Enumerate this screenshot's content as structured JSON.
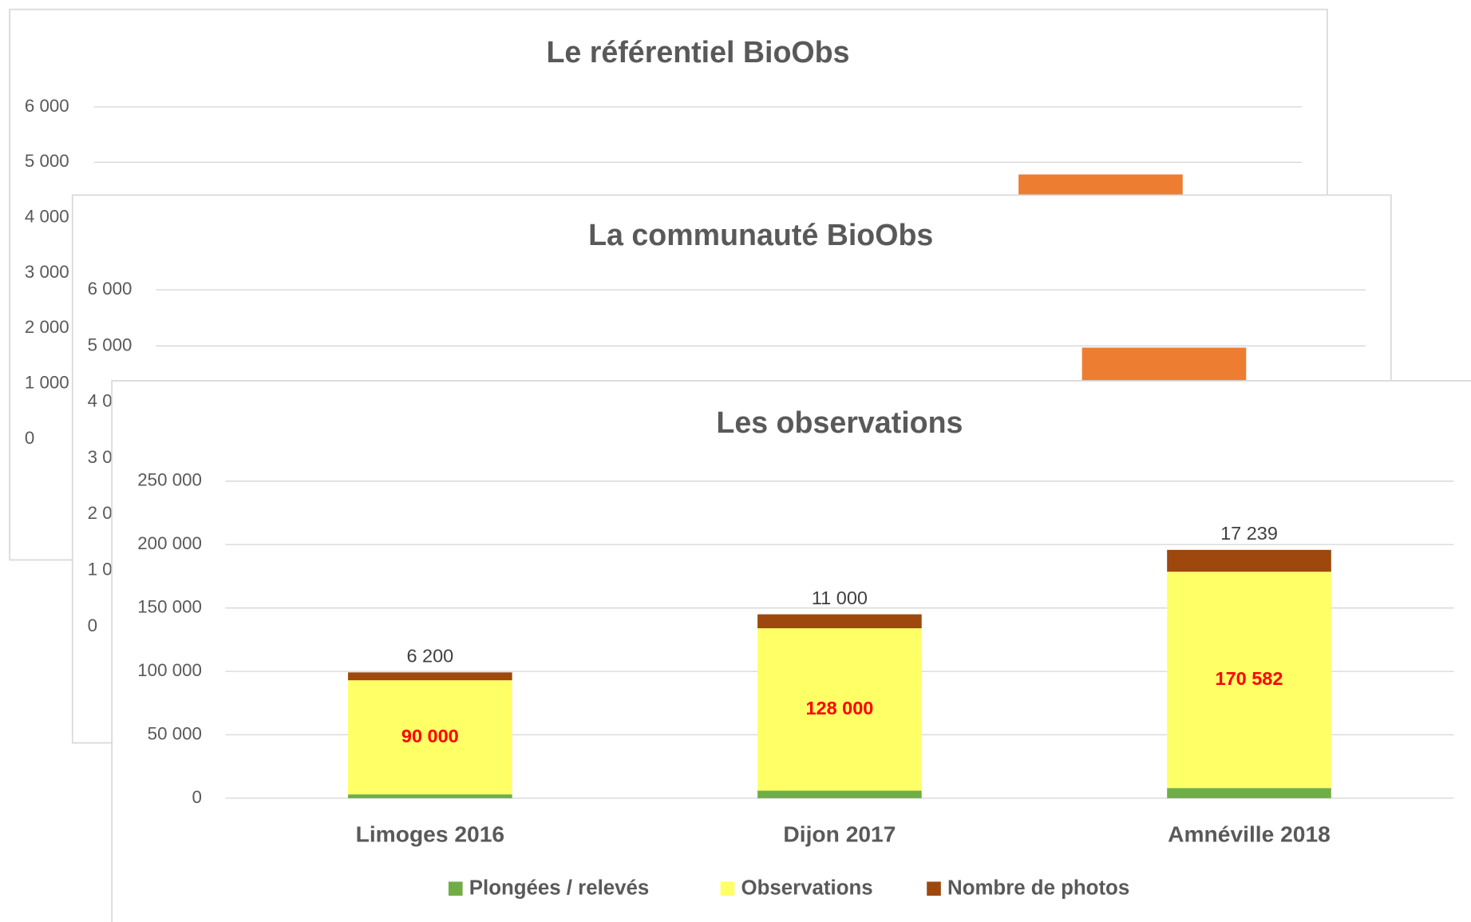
{
  "chart_data": [
    {
      "type": "bar",
      "title": "Le référentiel BioObs",
      "categories": [
        null,
        null,
        null
      ],
      "values": [
        null,
        null,
        4780
      ],
      "color": "#ed7d31",
      "ylim": [
        0,
        6000
      ],
      "yticks": [
        0,
        {
          "value": 1000,
          "label": "1 000"
        },
        {
          "value": 2000,
          "label": "2 000"
        },
        {
          "value": 3000,
          "label": "3 000"
        },
        {
          "value": 4000,
          "label": "4 000"
        },
        {
          "value": 5000,
          "label": "5 000"
        },
        {
          "value": 6000,
          "label": "6 000"
        }
      ],
      "grid": true
    },
    {
      "type": "bar",
      "title": "La communauté  BioObs",
      "categories": [
        null,
        null,
        null
      ],
      "values": [
        null,
        null,
        4970
      ],
      "color": "#ed7d31",
      "ylim": [
        0,
        6000
      ],
      "yticks": [
        0,
        {
          "value": 1000,
          "label": "1 000"
        },
        {
          "value": 2000,
          "label": "2 000"
        },
        {
          "value": 3000,
          "label": "3 000"
        },
        {
          "value": 4000,
          "label": "4 000"
        },
        {
          "value": 5000,
          "label": "5 000"
        },
        {
          "value": 6000,
          "label": "6 000"
        }
      ],
      "grid": true
    },
    {
      "type": "stacked-bar",
      "title": "Les observations",
      "categories": [
        "Limoges 2016",
        "Dijon 2017",
        "Amnéville 2018"
      ],
      "series": [
        {
          "name": "Plongées  / relevés",
          "color": "#70ad47",
          "values": [
            3000,
            6000,
            8000
          ]
        },
        {
          "name": "Observations",
          "color": "#ffff66",
          "values": [
            90000,
            128000,
            170582
          ],
          "value_labels": [
            "90 000",
            "128 000",
            "170 582"
          ]
        },
        {
          "name": "Nombre de photos",
          "color": "#9e480e",
          "values": [
            6200,
            11000,
            17239
          ],
          "value_labels": [
            "6 200",
            "11 000",
            "17 239"
          ]
        }
      ],
      "ylim": [
        0,
        250000
      ],
      "yticks": [
        0,
        {
          "value": 50000,
          "label": "50 000"
        },
        {
          "value": 100000,
          "label": "100 000"
        },
        {
          "value": 150000,
          "label": "150 000"
        },
        {
          "value": 200000,
          "label": "200 000"
        },
        {
          "value": 250000,
          "label": "250 000"
        }
      ],
      "grid": true,
      "legend": "bottom"
    }
  ]
}
